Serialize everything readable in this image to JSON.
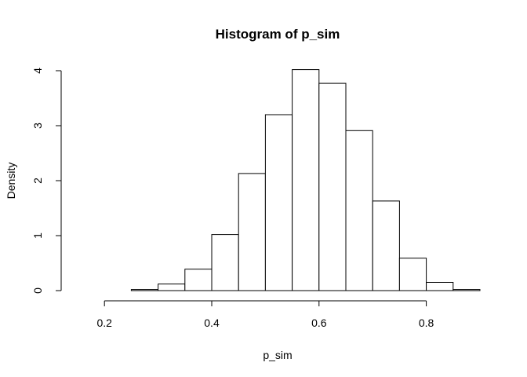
{
  "chart_data": {
    "type": "bar",
    "title": "Histogram of p_sim",
    "xlabel": "p_sim",
    "ylabel": "Density",
    "bin_edges": [
      0.15,
      0.2,
      0.25,
      0.3,
      0.35,
      0.4,
      0.45,
      0.5,
      0.55,
      0.6,
      0.65,
      0.7,
      0.75,
      0.8,
      0.85,
      0.9
    ],
    "values": [
      0.0,
      0.0,
      0.02,
      0.12,
      0.39,
      1.02,
      2.13,
      3.2,
      4.02,
      3.77,
      2.91,
      1.63,
      0.59,
      0.15,
      0.02
    ],
    "xlim": [
      0.15,
      0.9
    ],
    "ylim": [
      0,
      4
    ],
    "x_ticks": [
      0.2,
      0.4,
      0.6,
      0.8
    ],
    "x_tick_labels": [
      "0.2",
      "0.4",
      "0.6",
      "0.8"
    ],
    "y_ticks": [
      0,
      1,
      2,
      3,
      4
    ],
    "y_tick_labels": [
      "0",
      "1",
      "2",
      "3",
      "4"
    ],
    "grid": false,
    "bar_fill": "#ffffff",
    "bar_stroke": "#000000"
  }
}
